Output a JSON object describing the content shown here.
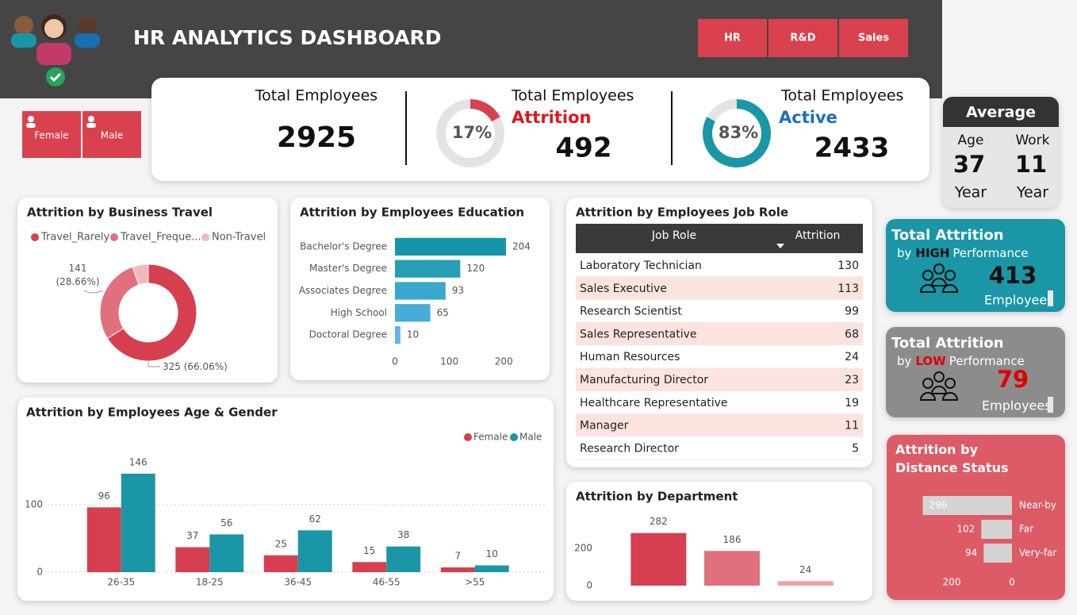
{
  "header": {
    "title": "HR ANALYTICS DASHBOARD",
    "departments": [
      "HR",
      "R&D",
      "Sales"
    ],
    "genders": [
      "Female",
      "Male"
    ]
  },
  "kpis": {
    "total": {
      "label": "Total Employees",
      "value": 2925
    },
    "attrition": {
      "label": "Total Employees",
      "status": "Attrition",
      "value": 492,
      "percent": 17,
      "percent_label": "17%"
    },
    "active": {
      "label": "Total Employees",
      "status": "Active",
      "value": 2433,
      "percent": 83,
      "percent_label": "83%"
    }
  },
  "average": {
    "title": "Average",
    "items": [
      {
        "label": "Age",
        "value": 37,
        "unit": "Year"
      },
      {
        "label": "Work",
        "value": 11,
        "unit": "Year"
      }
    ]
  },
  "performance": [
    {
      "title": "Total Attrition",
      "by": "by",
      "level": "HIGH",
      "suffix": "Performance",
      "value": 413,
      "unit": "Employees"
    },
    {
      "title": "Total Attrition",
      "by": "by",
      "level": "LOW",
      "suffix": "Performance",
      "value": 79,
      "unit": "Employees"
    }
  ],
  "job_role_table": {
    "title": "Attrition by Employees Job Role",
    "columns": [
      "Job Role",
      "Attrition"
    ],
    "rows": [
      [
        "Laboratory Technician",
        130
      ],
      [
        "Sales Executive",
        113
      ],
      [
        "Research Scientist",
        99
      ],
      [
        "Sales Representative",
        68
      ],
      [
        "Human Resources",
        24
      ],
      [
        "Manufacturing Director",
        23
      ],
      [
        "Healthcare Representative",
        19
      ],
      [
        "Manager",
        11
      ],
      [
        "Research Director",
        5
      ]
    ]
  },
  "chart_data": [
    {
      "type": "pie",
      "title": "Attrition by Business Travel",
      "categories": [
        "Travel_Rarely",
        "Travel_Freque...",
        "Non-Travel"
      ],
      "values": [
        325,
        141,
        26
      ],
      "value_labels": [
        "325 (66.06%)",
        "141 (28.66%)",
        null
      ],
      "colors": [
        "#d63f4f",
        "#e0707b",
        "#f2b8bf"
      ],
      "donut": true
    },
    {
      "type": "bar",
      "orientation": "horizontal",
      "title": "Attrition by Employees Education",
      "categories": [
        "Bachelor's Degree",
        "Master's Degree",
        "Associates Degree",
        "High School",
        "Doctoral Degree"
      ],
      "values": [
        204,
        120,
        93,
        65,
        10
      ],
      "colors": [
        "#1596a8",
        "#279fb3",
        "#3aa7cf",
        "#48abd8",
        "#5eb4ee"
      ],
      "xlim": [
        0,
        204
      ],
      "xticks": [
        0,
        100,
        200
      ],
      "grid": false
    },
    {
      "type": "bar",
      "title": "Attrition by Employees Age & Gender",
      "categories": [
        "26-35",
        "18-25",
        "36-45",
        "46-55",
        ">55"
      ],
      "series": [
        {
          "name": "Female",
          "color": "#d63f4f",
          "values": [
            96,
            37,
            25,
            15,
            7
          ]
        },
        {
          "name": "Male",
          "color": "#1a96a6",
          "values": [
            146,
            56,
            62,
            38,
            10
          ]
        }
      ],
      "ylim": [
        0,
        150
      ],
      "yticks": [
        0,
        100
      ],
      "grid": true,
      "legend": "top-right"
    },
    {
      "type": "bar",
      "title": "Attrition by Department",
      "categories": [
        null,
        null,
        null
      ],
      "values": [
        282,
        186,
        24
      ],
      "colors": [
        "#d63f4f",
        "#e0707b",
        "#f0a0a8"
      ],
      "ylim": [
        0,
        300
      ],
      "yticks": [
        0,
        200
      ],
      "grid": false
    },
    {
      "type": "bar",
      "orientation": "horizontal",
      "title": "Attrition by Distance Status",
      "categories": [
        "Near-by",
        "Far",
        "Very-far"
      ],
      "values": [
        296,
        102,
        94
      ],
      "color": "#d3d3d3",
      "xlim": [
        0,
        300
      ],
      "xticks": [
        0,
        200
      ],
      "x_reversed": true,
      "grid": false
    }
  ]
}
